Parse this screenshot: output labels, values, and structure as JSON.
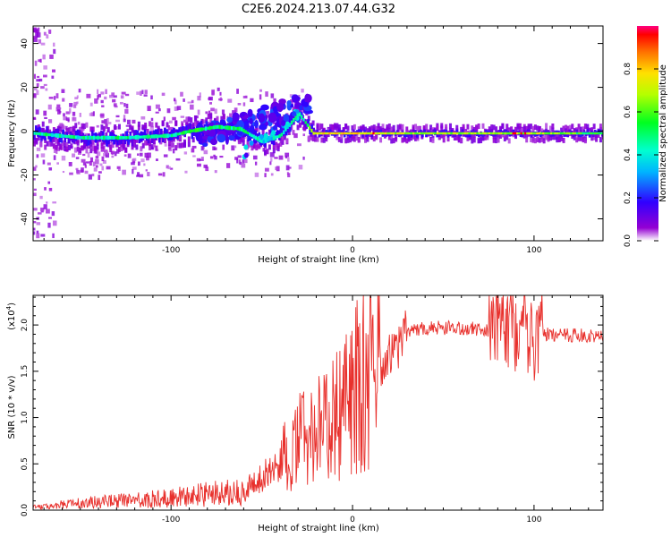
{
  "title": "C2E6.2024.213.07.44.G32",
  "chart_data": [
    {
      "type": "heatmap",
      "xlabel": "Height of straight line (km)",
      "ylabel": "Frequency (Hz)",
      "xlim": [
        -176,
        138
      ],
      "ylim": [
        -50,
        48
      ],
      "xticks": [
        -100,
        0,
        100
      ],
      "xtick_labels": [
        "-100",
        "0",
        "100"
      ],
      "yticks": [
        -40,
        -20,
        0,
        20,
        40
      ],
      "ytick_labels": [
        "-40",
        "-20",
        "0",
        "20",
        "40"
      ],
      "colorbar": {
        "label": "Normalized spectral amplitude",
        "range": [
          0,
          1
        ],
        "ticks": [
          0.0,
          0.2,
          0.4,
          0.6,
          0.8
        ],
        "tick_labels": [
          "0.0",
          "0.2",
          "0.4",
          "0.6",
          "0.8"
        ],
        "colormap": "rainbow"
      },
      "ridge": [
        {
          "x": -176,
          "f": -1,
          "a": 0.45
        },
        {
          "x": -150,
          "f": -3,
          "a": 0.45
        },
        {
          "x": -125,
          "f": -3,
          "a": 0.45
        },
        {
          "x": -100,
          "f": -2,
          "a": 0.45
        },
        {
          "x": -90,
          "f": 0,
          "a": 0.5
        },
        {
          "x": -75,
          "f": 2,
          "a": 0.5
        },
        {
          "x": -62,
          "f": 1,
          "a": 0.5
        },
        {
          "x": -50,
          "f": -5,
          "a": 0.35
        },
        {
          "x": -40,
          "f": -2,
          "a": 0.4
        },
        {
          "x": -30,
          "f": 8,
          "a": 0.4
        },
        {
          "x": -22,
          "f": -1,
          "a": 0.75
        },
        {
          "x": 0,
          "f": -1,
          "a": 0.75
        },
        {
          "x": 50,
          "f": -1,
          "a": 0.65
        },
        {
          "x": 100,
          "f": -1,
          "a": 0.7
        },
        {
          "x": 138,
          "f": -1,
          "a": 0.5
        }
      ]
    },
    {
      "type": "line",
      "xlabel": "Height of straight line (km)",
      "ylabel": "SNR (10 * v/v)",
      "yscale_label": "(x10",
      "yscale_exp": "4",
      "xlim": [
        -176,
        138
      ],
      "ylim": [
        0,
        2.32
      ],
      "xticks": [
        -100,
        0,
        100
      ],
      "xtick_labels": [
        "-100",
        "0",
        "100"
      ],
      "yticks": [
        0.0,
        0.5,
        1.0,
        1.5,
        2.0
      ],
      "ytick_labels": [
        "0.0",
        "0.5",
        "1.0",
        "1.5",
        "2.0"
      ],
      "color": "#e8302c",
      "series": [
        {
          "x": [
            -176,
            -150,
            -125,
            -110,
            -90,
            -75,
            -60,
            -55,
            -50,
            -45,
            -40,
            -35,
            -30,
            -25,
            -20,
            -15,
            -10,
            -5,
            0,
            5,
            10,
            15,
            18,
            20,
            25,
            30,
            35,
            40,
            50,
            60,
            70,
            75,
            80,
            85,
            90,
            95,
            100,
            110,
            120,
            138
          ],
          "y": [
            0.03,
            0.08,
            0.1,
            0.12,
            0.15,
            0.18,
            0.2,
            0.28,
            0.35,
            0.45,
            0.55,
            0.62,
            0.7,
            0.78,
            0.8,
            0.85,
            0.95,
            1.05,
            1.2,
            1.35,
            1.45,
            1.55,
            1.65,
            1.7,
            1.78,
            1.9,
            1.94,
            1.96,
            1.97,
            1.97,
            1.96,
            1.95,
            1.92,
            1.9,
            1.92,
            1.9,
            1.9,
            1.9,
            1.89,
            1.88
          ]
        }
      ]
    }
  ]
}
